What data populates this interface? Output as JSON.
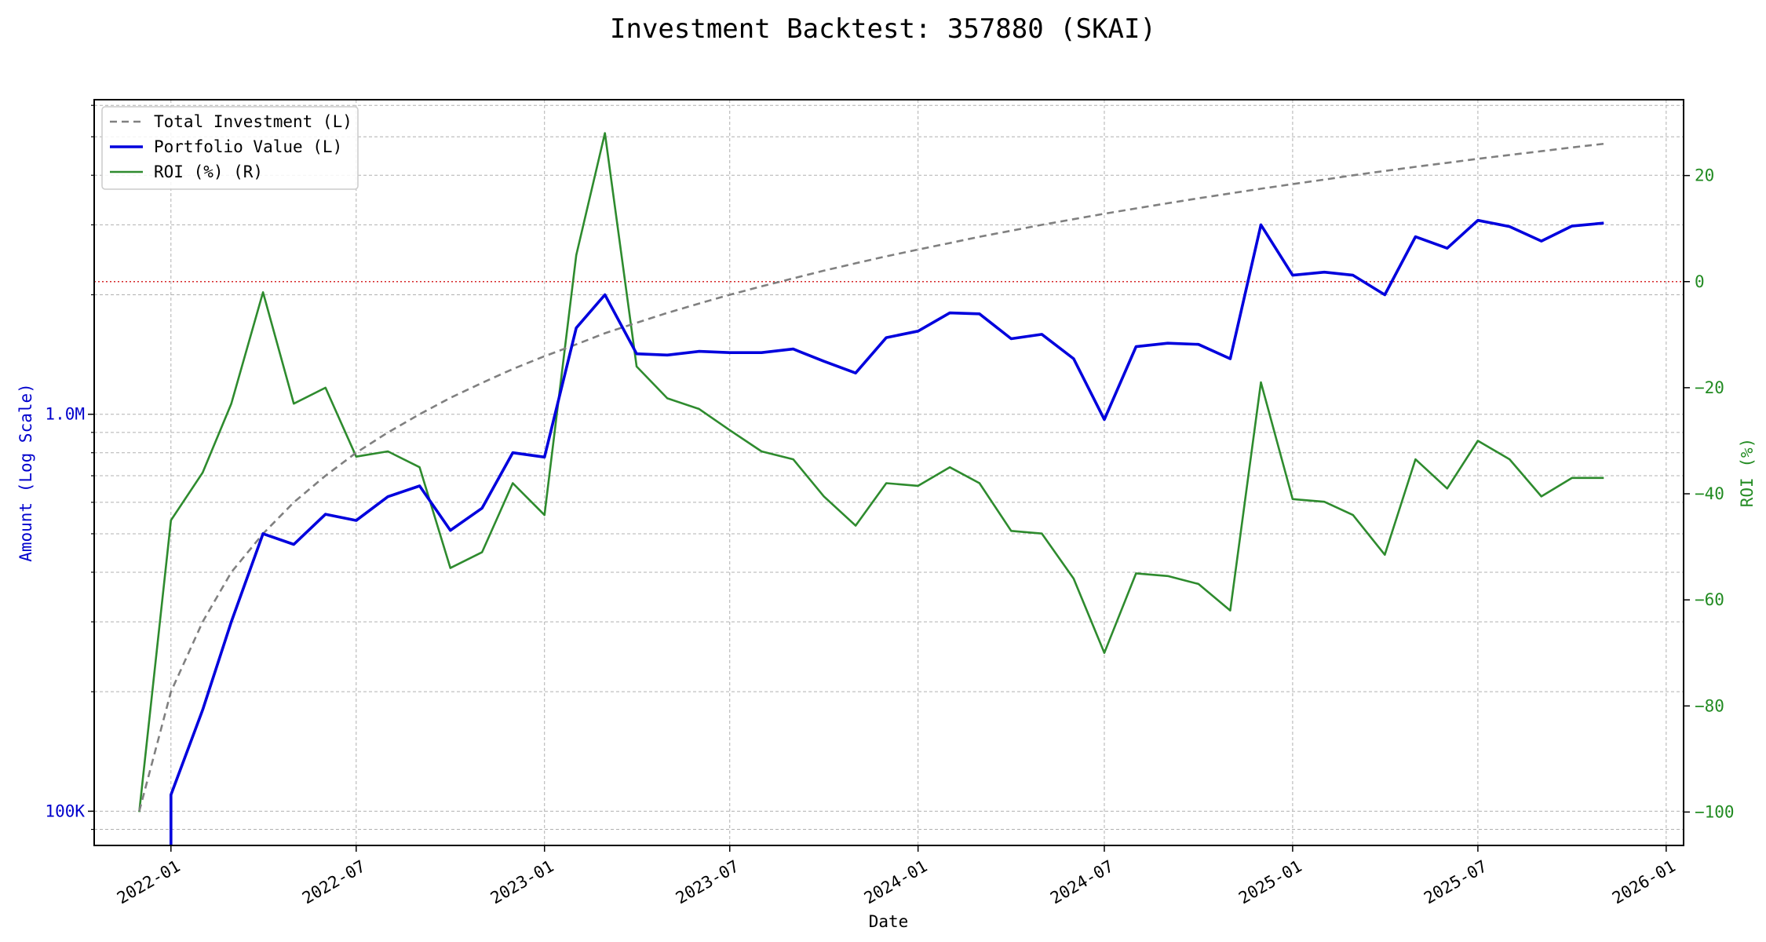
{
  "chart_data": {
    "type": "line",
    "title": "Investment Backtest: 357880 (SKAI)",
    "xlabel": "Date",
    "ylabel_left": "Amount (Log Scale)",
    "ylabel_right": "ROI (%)",
    "y_left_scale": "log",
    "y_left_ticks": [
      {
        "value": 100000,
        "label": "100K"
      },
      {
        "value": 1000000,
        "label": "1.0M"
      }
    ],
    "y_left_range": [
      82000,
      6200000
    ],
    "y_right_ticks": [
      {
        "value": 20,
        "label": "20"
      },
      {
        "value": 0,
        "label": "0"
      },
      {
        "value": -20,
        "label": "−20"
      },
      {
        "value": -40,
        "label": "−40"
      },
      {
        "value": -60,
        "label": "−60"
      },
      {
        "value": -80,
        "label": "−80"
      },
      {
        "value": -100,
        "label": "−100"
      }
    ],
    "y_right_range": [
      -106.3,
      34.3
    ],
    "x_ticks": [
      "2022-01",
      "2022-07",
      "2023-01",
      "2023-07",
      "2024-01",
      "2024-07",
      "2025-01",
      "2025-07",
      "2026-01"
    ],
    "x_range": [
      "2021-10-18",
      "2026-01-18"
    ],
    "grid": true,
    "legend_position": "top-left",
    "reference_line": {
      "axis": "right",
      "value": 0,
      "color": "#d62728",
      "style": "dotted"
    },
    "dates": [
      "2021-12-01",
      "2022-01-01",
      "2022-02-01",
      "2022-03-01",
      "2022-04-01",
      "2022-05-01",
      "2022-06-01",
      "2022-07-01",
      "2022-08-01",
      "2022-09-01",
      "2022-10-01",
      "2022-11-01",
      "2022-12-01",
      "2023-01-01",
      "2023-02-01",
      "2023-03-01",
      "2023-04-01",
      "2023-05-01",
      "2023-06-01",
      "2023-07-01",
      "2023-08-01",
      "2023-09-01",
      "2023-10-01",
      "2023-11-01",
      "2023-12-01",
      "2024-01-01",
      "2024-02-01",
      "2024-03-01",
      "2024-04-01",
      "2024-05-01",
      "2024-06-01",
      "2024-07-01",
      "2024-08-01",
      "2024-09-01",
      "2024-10-01",
      "2024-11-01",
      "2024-12-01",
      "2025-01-01",
      "2025-02-01",
      "2025-03-01",
      "2025-04-01",
      "2025-05-01",
      "2025-06-01",
      "2025-07-01",
      "2025-08-01",
      "2025-09-01",
      "2025-10-01",
      "2025-11-01"
    ],
    "series": [
      {
        "name": "Total Investment (L)",
        "axis": "left",
        "color": "#808080",
        "style": "dashed",
        "values": [
          100000,
          200000,
          300000,
          400000,
          500000,
          600000,
          700000,
          800000,
          900000,
          1000000,
          1100000,
          1200000,
          1300000,
          1400000,
          1500000,
          1600000,
          1700000,
          1800000,
          1900000,
          2000000,
          2100000,
          2200000,
          2300000,
          2400000,
          2500000,
          2600000,
          2700000,
          2800000,
          2900000,
          3000000,
          3100000,
          3200000,
          3300000,
          3400000,
          3500000,
          3600000,
          3700000,
          3800000,
          3900000,
          4000000,
          4100000,
          4200000,
          4300000,
          4400000,
          4500000,
          4600000,
          4700000,
          4800000
        ]
      },
      {
        "name": "Portfolio Value (L)",
        "axis": "left",
        "color": "#0000dd",
        "style": "solid",
        "values": [
          null,
          110000,
          180000,
          300000,
          500000,
          470000,
          560000,
          540000,
          620000,
          660000,
          510000,
          580000,
          800000,
          780000,
          1650000,
          2000000,
          1420000,
          1410000,
          1440000,
          1430000,
          1430000,
          1460000,
          1360000,
          1270000,
          1560000,
          1620000,
          1800000,
          1790000,
          1550000,
          1590000,
          1380000,
          970000,
          1480000,
          1510000,
          1500000,
          1380000,
          3000000,
          2240000,
          2280000,
          2240000,
          2000000,
          2800000,
          2620000,
          3080000,
          2970000,
          2730000,
          2980000,
          3030000
        ]
      },
      {
        "name": "ROI (%) (R)",
        "axis": "right",
        "color": "#2e8b2e",
        "style": "solid",
        "values": [
          -100,
          -45,
          -36,
          -23,
          -2,
          -23,
          -20,
          -33,
          -32,
          -35,
          -54,
          -51,
          -38,
          -44,
          5,
          28,
          -16,
          -22,
          -24,
          -28,
          -32,
          -33.5,
          -40.5,
          -46,
          -38,
          -38.5,
          -35,
          -38,
          -47,
          -47.5,
          -56,
          -70,
          -55,
          -55.5,
          -57,
          -62,
          -19,
          -41,
          -41.5,
          -44,
          -51.5,
          -33.5,
          -39,
          -30,
          -33.5,
          -40.5,
          -37,
          -37
        ]
      }
    ]
  }
}
